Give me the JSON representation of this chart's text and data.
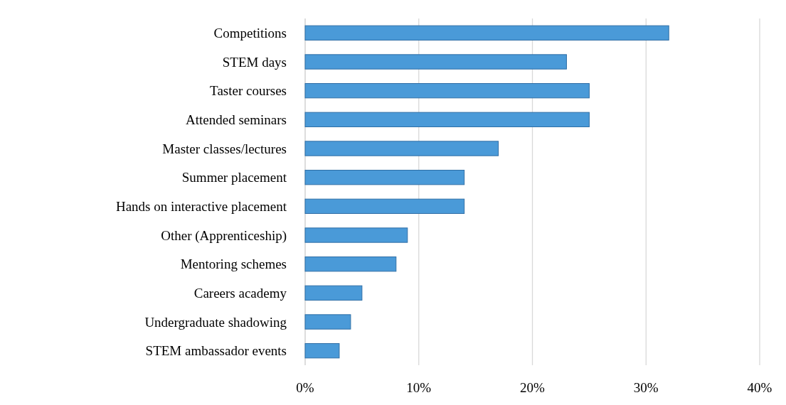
{
  "chart_data": {
    "type": "bar",
    "orientation": "horizontal",
    "categories": [
      "Competitions",
      "STEM days",
      "Taster courses",
      "Attended seminars",
      "Master classes/lectures",
      "Summer placement",
      "Hands on interactive placement",
      "Other (Apprenticeship)",
      "Mentoring schemes",
      "Careers academy",
      "Undergraduate shadowing",
      "STEM ambassador events"
    ],
    "values": [
      32,
      23,
      25,
      25,
      17,
      14,
      14,
      9,
      8,
      5,
      4,
      3
    ],
    "color": "#4a9ad8",
    "xlim": [
      0,
      40
    ],
    "xticks": [
      {
        "value": 0,
        "label": "0%"
      },
      {
        "value": 10,
        "label": "10%"
      },
      {
        "value": 20,
        "label": "20%"
      },
      {
        "value": 30,
        "label": "30%"
      },
      {
        "value": 40,
        "label": "40%"
      }
    ],
    "grid": "x"
  }
}
